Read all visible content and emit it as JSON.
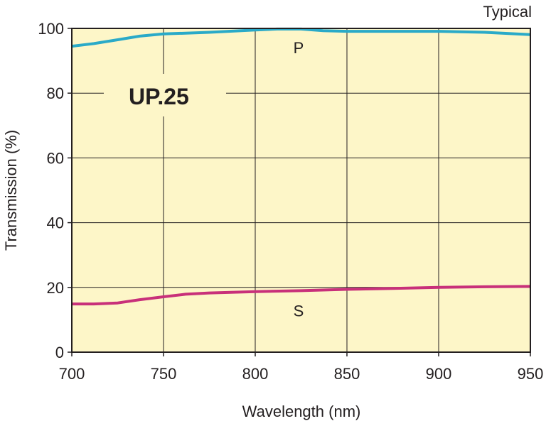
{
  "chart_data": {
    "type": "line",
    "title": "UP.25",
    "note": "Typical",
    "xlabel": "Wavelength (nm)",
    "ylabel": "Transmission (%)",
    "xlim": [
      700,
      950
    ],
    "ylim": [
      0,
      100
    ],
    "xticks": [
      "700",
      "750",
      "800",
      "850",
      "900",
      "950"
    ],
    "yticks": [
      "0",
      "20",
      "40",
      "60",
      "80",
      "100"
    ],
    "grid": true,
    "background": "#fdf6c8",
    "series": [
      {
        "name": "P",
        "color": "#2aaac8",
        "x": [
          700,
          712,
          725,
          737,
          750,
          775,
          800,
          812,
          825,
          837,
          850,
          875,
          900,
          925,
          950
        ],
        "y": [
          94.5,
          95.3,
          96.5,
          97.6,
          98.3,
          98.8,
          99.5,
          99.8,
          99.8,
          99.3,
          99.1,
          99.1,
          99.1,
          98.8,
          98.1
        ]
      },
      {
        "name": "S",
        "color": "#c8307a",
        "x": [
          700,
          712,
          725,
          737,
          750,
          762,
          775,
          800,
          825,
          850,
          875,
          900,
          925,
          950
        ],
        "y": [
          14.9,
          14.9,
          15.2,
          16.2,
          17.1,
          17.9,
          18.3,
          18.7,
          19.0,
          19.4,
          19.7,
          20.0,
          20.2,
          20.3
        ]
      }
    ]
  }
}
